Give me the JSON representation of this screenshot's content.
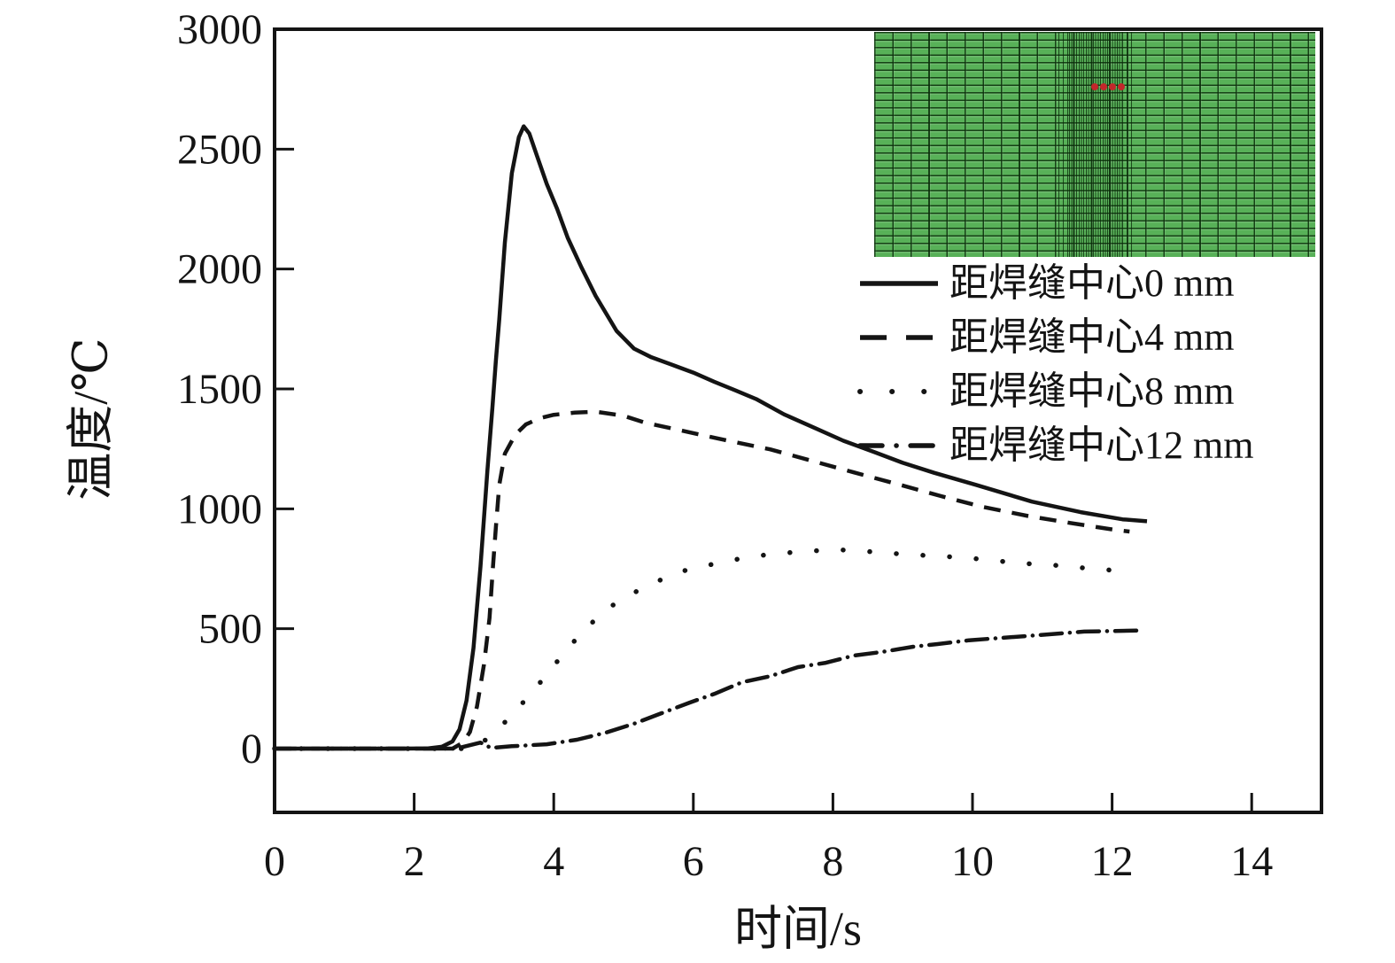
{
  "figure": {
    "background": "#ffffff",
    "ink": "#141414"
  },
  "chart_data": {
    "type": "line",
    "title": "",
    "xlabel": "时间/s",
    "ylabel": "温度/℃",
    "xlim": [
      0,
      15
    ],
    "ylim": [
      0,
      3000
    ],
    "x_ticks": [
      0,
      2,
      4,
      6,
      8,
      10,
      12,
      14
    ],
    "y_ticks": [
      0,
      500,
      1000,
      1500,
      2000,
      2500,
      3000
    ],
    "grid": false,
    "legend_position": "upper-right-below-inset",
    "series": [
      {
        "name": "距焊缝中心0 mm",
        "line_style": "solid",
        "peak_temperature_c": 2595,
        "peak_time_s": 3.57,
        "points": [
          [
            0,
            0
          ],
          [
            1,
            0
          ],
          [
            1.8,
            0
          ],
          [
            2.2,
            1
          ],
          [
            2.4,
            8
          ],
          [
            2.55,
            30
          ],
          [
            2.65,
            80
          ],
          [
            2.75,
            200
          ],
          [
            2.85,
            420
          ],
          [
            2.95,
            760
          ],
          [
            3.05,
            1160
          ],
          [
            3.12,
            1420
          ],
          [
            3.17,
            1615
          ],
          [
            3.22,
            1790
          ],
          [
            3.3,
            2110
          ],
          [
            3.4,
            2400
          ],
          [
            3.5,
            2550
          ],
          [
            3.57,
            2595
          ],
          [
            3.65,
            2565
          ],
          [
            3.75,
            2480
          ],
          [
            3.9,
            2355
          ],
          [
            4.05,
            2250
          ],
          [
            4.2,
            2130
          ],
          [
            4.4,
            2005
          ],
          [
            4.6,
            1888
          ],
          [
            4.9,
            1742
          ],
          [
            5.15,
            1668
          ],
          [
            5.4,
            1632
          ],
          [
            5.7,
            1600
          ],
          [
            6.0,
            1568
          ],
          [
            6.3,
            1530
          ],
          [
            6.6,
            1494
          ],
          [
            6.9,
            1458
          ],
          [
            7.3,
            1394
          ],
          [
            7.75,
            1336
          ],
          [
            8.15,
            1284
          ],
          [
            8.6,
            1236
          ],
          [
            9.0,
            1192
          ],
          [
            9.45,
            1150
          ],
          [
            10.05,
            1100
          ],
          [
            10.85,
            1030
          ],
          [
            11.55,
            986
          ],
          [
            12.15,
            956
          ],
          [
            12.5,
            948
          ]
        ]
      },
      {
        "name": "距焊缝中心4 mm",
        "line_style": "dashed",
        "peak_temperature_c": 1405,
        "peak_time_s": 4.6,
        "points": [
          [
            0,
            0
          ],
          [
            1,
            0
          ],
          [
            2.0,
            0
          ],
          [
            2.55,
            0
          ],
          [
            2.7,
            25
          ],
          [
            2.8,
            70
          ],
          [
            2.9,
            175
          ],
          [
            3.0,
            350
          ],
          [
            3.08,
            545
          ],
          [
            3.13,
            760
          ],
          [
            3.17,
            920
          ],
          [
            3.22,
            1100
          ],
          [
            3.3,
            1230
          ],
          [
            3.45,
            1310
          ],
          [
            3.6,
            1352
          ],
          [
            3.8,
            1378
          ],
          [
            4.0,
            1392
          ],
          [
            4.3,
            1401
          ],
          [
            4.6,
            1405
          ],
          [
            5.0,
            1388
          ],
          [
            5.3,
            1360
          ],
          [
            5.9,
            1322
          ],
          [
            6.5,
            1284
          ],
          [
            7.1,
            1248
          ],
          [
            7.7,
            1200
          ],
          [
            8.3,
            1152
          ],
          [
            9.0,
            1097
          ],
          [
            9.55,
            1053
          ],
          [
            10.15,
            1008
          ],
          [
            10.8,
            970
          ],
          [
            11.4,
            941
          ],
          [
            12.05,
            912
          ],
          [
            12.25,
            905
          ]
        ]
      },
      {
        "name": "距焊缝中心8 mm",
        "line_style": "dotted",
        "peak_temperature_c": 830,
        "peak_time_s": 8.1,
        "points": [
          [
            0,
            0
          ],
          [
            1,
            0
          ],
          [
            2.0,
            0
          ],
          [
            2.85,
            0
          ],
          [
            3.0,
            30
          ],
          [
            3.06,
            48
          ],
          [
            3.3,
            110
          ],
          [
            3.6,
            205
          ],
          [
            3.9,
            308
          ],
          [
            4.15,
            400
          ],
          [
            4.45,
            500
          ],
          [
            4.8,
            590
          ],
          [
            5.2,
            658
          ],
          [
            5.6,
            713
          ],
          [
            5.95,
            750
          ],
          [
            6.4,
            776
          ],
          [
            6.8,
            800
          ],
          [
            7.2,
            813
          ],
          [
            7.65,
            824
          ],
          [
            8.1,
            829
          ],
          [
            8.5,
            822
          ],
          [
            8.9,
            813
          ],
          [
            9.35,
            805
          ],
          [
            9.8,
            798
          ],
          [
            10.25,
            787
          ],
          [
            10.65,
            773
          ],
          [
            11.05,
            768
          ],
          [
            11.45,
            757
          ],
          [
            11.85,
            747
          ],
          [
            12.25,
            739
          ]
        ]
      },
      {
        "name": "距焊缝中心12 mm",
        "line_style": "dashdot",
        "peak_temperature_c": 495,
        "peak_time_s": 12.4,
        "points": [
          [
            0,
            0
          ],
          [
            1,
            0
          ],
          [
            2.0,
            0
          ],
          [
            2.6,
            0
          ],
          [
            2.95,
            25
          ],
          [
            3.1,
            3
          ],
          [
            3.4,
            10
          ],
          [
            3.9,
            18
          ],
          [
            4.33,
            37
          ],
          [
            4.75,
            67
          ],
          [
            5.15,
            104
          ],
          [
            5.55,
            148
          ],
          [
            5.95,
            192
          ],
          [
            6.3,
            228
          ],
          [
            6.7,
            277
          ],
          [
            7.1,
            302
          ],
          [
            7.5,
            340
          ],
          [
            7.9,
            358
          ],
          [
            8.3,
            388
          ],
          [
            8.7,
            403
          ],
          [
            9.15,
            425
          ],
          [
            9.5,
            436
          ],
          [
            9.95,
            452
          ],
          [
            10.75,
            469
          ],
          [
            11.6,
            488
          ],
          [
            12.45,
            493
          ]
        ]
      }
    ]
  },
  "inset": {
    "content": "finite-element-mesh",
    "mesh_color": "#58b158",
    "mesh_line_color": "#0a2d0a",
    "marker_color": "#c3272b",
    "marker_count": 4
  }
}
